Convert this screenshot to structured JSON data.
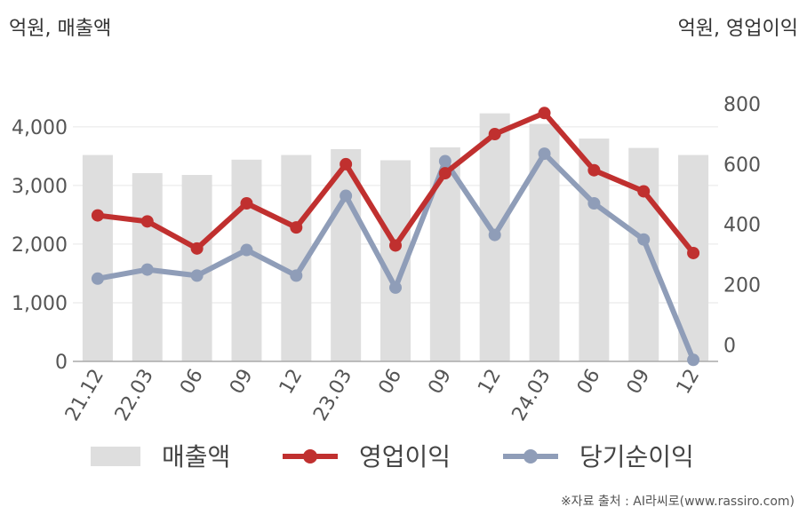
{
  "left_unit_label": "억원, 매출액",
  "right_unit_label": "억원, 영업이익",
  "source_text": "※자료 출처 : AI라씨로(www.rassiro.com)",
  "colors": {
    "revenue": "#dedede",
    "operating_profit": "#c0302f",
    "net_income": "#8f9db8",
    "grid": "#e6e6e6",
    "axis": "#aaaaaa",
    "tick_text": "#555555"
  },
  "chart_data": {
    "type": "bar",
    "categories": [
      "21.12",
      "22.03",
      "06",
      "09",
      "12",
      "23.03",
      "06",
      "09",
      "12",
      "24.03",
      "06",
      "09",
      "12"
    ],
    "series": [
      {
        "name": "매출액",
        "type": "bar",
        "axis": "left",
        "values": [
          3520,
          3210,
          3180,
          3440,
          3520,
          3620,
          3430,
          3650,
          4230,
          4050,
          3800,
          3640,
          3520
        ]
      },
      {
        "name": "영업이익",
        "type": "line",
        "axis": "right",
        "values": [
          430,
          410,
          320,
          470,
          390,
          600,
          330,
          570,
          700,
          770,
          580,
          510,
          305
        ]
      },
      {
        "name": "당기순이익",
        "type": "line",
        "axis": "right",
        "values": [
          220,
          250,
          230,
          315,
          230,
          495,
          190,
          610,
          365,
          635,
          470,
          350,
          -50
        ]
      }
    ],
    "left_axis": {
      "ticks": [
        0,
        1000,
        2000,
        3000,
        4000
      ],
      "tick_labels": [
        "0",
        "1,000",
        "2,000",
        "3,000",
        "4,000"
      ],
      "range": [
        0,
        4800
      ]
    },
    "right_axis": {
      "ticks": [
        0,
        200,
        400,
        600,
        800
      ],
      "tick_labels": [
        "0",
        "200",
        "400",
        "600",
        "800"
      ],
      "range": [
        -55,
        880
      ]
    },
    "legend_position": "bottom",
    "grid": true
  }
}
